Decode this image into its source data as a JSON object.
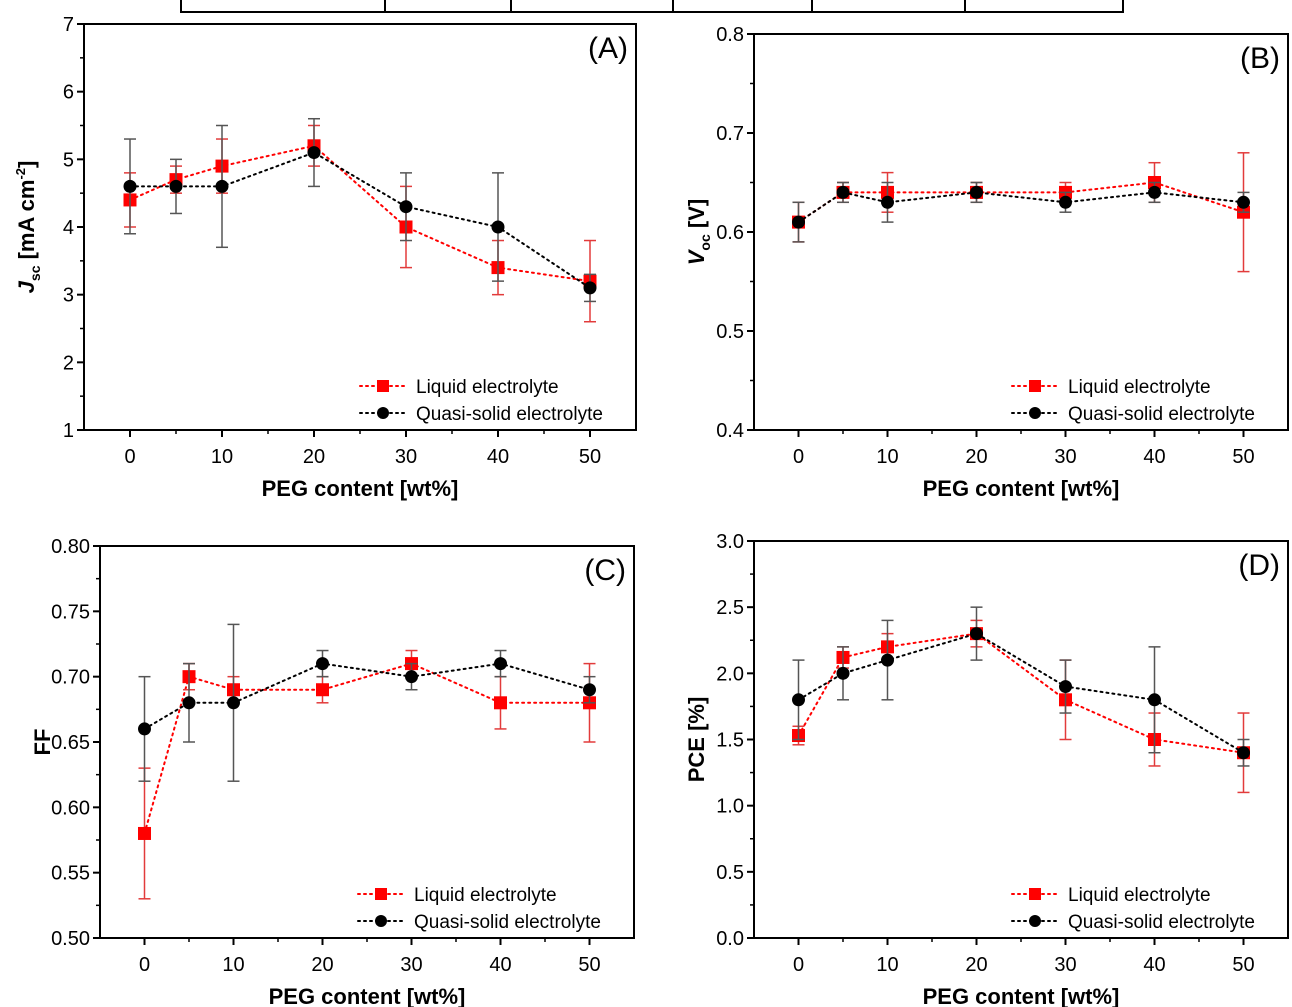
{
  "chart_data": [
    {
      "type": "line",
      "panel_label": "(A)",
      "xlabel": "PEG content [wt%]",
      "ylabel": "J",
      "ylabel_sub": "sc",
      "ylabel_unit": " [mA cm",
      "ylabel_unit_sup": "-2",
      "ylabel_unit_end": "]",
      "xlim": [
        -5,
        55
      ],
      "ylim": [
        1,
        7
      ],
      "xticks": [
        "0",
        "10",
        "20",
        "30",
        "40",
        "50"
      ],
      "yticks": [
        "1",
        "2",
        "3",
        "4",
        "5",
        "6",
        "7"
      ],
      "legend_position": "bottom-right",
      "x": [
        0,
        5,
        10,
        20,
        30,
        40,
        50
      ],
      "series": [
        {
          "name": "Liquid electrolyte",
          "marker": "square",
          "color": "#ff0000",
          "values": [
            4.4,
            4.7,
            4.9,
            5.2,
            4.0,
            3.4,
            3.2
          ],
          "errors": [
            0.4,
            0.2,
            0.4,
            0.3,
            0.6,
            0.4,
            0.6
          ]
        },
        {
          "name": "Quasi-solid electrolyte",
          "marker": "circle",
          "color": "#000000",
          "values": [
            4.6,
            4.6,
            4.6,
            5.1,
            4.3,
            4.0,
            3.1
          ],
          "errors": [
            0.7,
            0.4,
            0.9,
            0.5,
            0.5,
            0.8,
            0.2
          ]
        }
      ]
    },
    {
      "type": "line",
      "panel_label": "(B)",
      "xlabel": "PEG content [wt%]",
      "ylabel": "V",
      "ylabel_sub": "oc",
      "ylabel_unit": " [V]",
      "ylabel_unit_sup": "",
      "ylabel_unit_end": "",
      "xlim": [
        -5,
        55
      ],
      "ylim": [
        0.4,
        0.8
      ],
      "xticks": [
        "0",
        "10",
        "20",
        "30",
        "40",
        "50"
      ],
      "yticks": [
        "0.4",
        "0.5",
        "0.6",
        "0.7",
        "0.8"
      ],
      "legend_position": "bottom-right",
      "x": [
        0,
        5,
        10,
        20,
        30,
        40,
        50
      ],
      "series": [
        {
          "name": "Liquid electrolyte",
          "marker": "square",
          "color": "#ff0000",
          "values": [
            0.61,
            0.64,
            0.64,
            0.64,
            0.64,
            0.65,
            0.62
          ],
          "errors": [
            0.02,
            0.01,
            0.02,
            0.01,
            0.01,
            0.02,
            0.06
          ]
        },
        {
          "name": "Quasi-solid electrolyte",
          "marker": "circle",
          "color": "#000000",
          "values": [
            0.61,
            0.64,
            0.63,
            0.64,
            0.63,
            0.64,
            0.63
          ],
          "errors": [
            0.02,
            0.01,
            0.02,
            0.01,
            0.01,
            0.01,
            0.01
          ]
        }
      ]
    },
    {
      "type": "line",
      "panel_label": "(C)",
      "xlabel": "PEG content [wt%]",
      "ylabel": "FF",
      "ylabel_sub": "",
      "ylabel_unit": "",
      "ylabel_unit_sup": "",
      "ylabel_unit_end": "",
      "xlim": [
        -5,
        55
      ],
      "ylim": [
        0.5,
        0.8
      ],
      "xticks": [
        "0",
        "10",
        "20",
        "30",
        "40",
        "50"
      ],
      "yticks": [
        "0.50",
        "0.55",
        "0.60",
        "0.65",
        "0.70",
        "0.75",
        "0.80"
      ],
      "legend_position": "bottom-right",
      "x": [
        0,
        5,
        10,
        20,
        30,
        40,
        50
      ],
      "series": [
        {
          "name": "Liquid electrolyte",
          "marker": "square",
          "color": "#ff0000",
          "values": [
            0.58,
            0.7,
            0.69,
            0.69,
            0.71,
            0.68,
            0.68
          ],
          "errors": [
            0.05,
            0.01,
            0.01,
            0.01,
            0.01,
            0.02,
            0.03
          ]
        },
        {
          "name": "Quasi-solid electrolyte",
          "marker": "circle",
          "color": "#000000",
          "values": [
            0.66,
            0.68,
            0.68,
            0.71,
            0.7,
            0.71,
            0.69
          ],
          "errors": [
            0.04,
            0.03,
            0.06,
            0.01,
            0.01,
            0.01,
            0.01
          ]
        }
      ]
    },
    {
      "type": "line",
      "panel_label": "(D)",
      "xlabel": "PEG content [wt%]",
      "ylabel": "PCE [%]",
      "ylabel_sub": "",
      "ylabel_unit": "",
      "ylabel_unit_sup": "",
      "ylabel_unit_end": "",
      "xlim": [
        -5,
        55
      ],
      "ylim": [
        0.0,
        3.0
      ],
      "xticks": [
        "0",
        "10",
        "20",
        "30",
        "40",
        "50"
      ],
      "yticks": [
        "0.0",
        "0.5",
        "1.0",
        "1.5",
        "2.0",
        "2.5",
        "3.0"
      ],
      "legend_position": "bottom-right",
      "x": [
        0,
        5,
        10,
        20,
        30,
        40,
        50
      ],
      "series": [
        {
          "name": "Liquid electrolyte",
          "marker": "square",
          "color": "#ff0000",
          "values": [
            1.53,
            2.12,
            2.2,
            2.3,
            1.8,
            1.5,
            1.4
          ],
          "errors": [
            0.07,
            0.08,
            0.1,
            0.1,
            0.3,
            0.2,
            0.3
          ]
        },
        {
          "name": "Quasi-solid electrolyte",
          "marker": "circle",
          "color": "#000000",
          "values": [
            1.8,
            2.0,
            2.1,
            2.3,
            1.9,
            1.8,
            1.4
          ],
          "errors": [
            0.3,
            0.2,
            0.3,
            0.2,
            0.2,
            0.4,
            0.1
          ]
        }
      ]
    }
  ]
}
